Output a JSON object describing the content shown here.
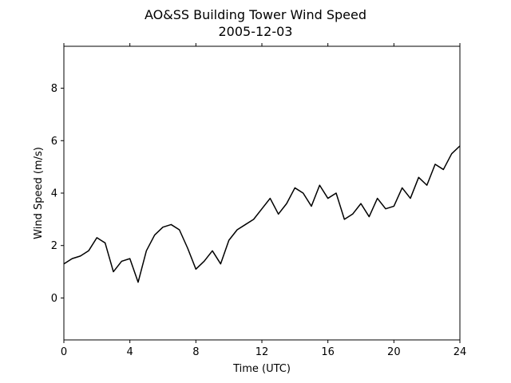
{
  "chart_data": {
    "type": "line",
    "title": "AO&SS Building Tower Wind Speed",
    "subtitle": "2005-12-03",
    "xlabel": "Time (UTC)",
    "ylabel": "Wind Speed (m/s)",
    "xlim": [
      0,
      24
    ],
    "ylim": [
      -1.6,
      9.6
    ],
    "xticks": [
      0,
      4,
      8,
      12,
      16,
      20,
      24
    ],
    "yticks": [
      0,
      2,
      4,
      6,
      8
    ],
    "grid": false,
    "legend": "none",
    "color": "#000000",
    "series": [
      {
        "x": [
          0.0,
          0.5,
          1.0,
          1.5,
          2.0,
          2.5,
          3.0,
          3.5,
          4.0,
          4.5,
          5.0,
          5.5,
          6.0,
          6.5,
          7.0,
          7.5,
          8.0,
          8.5,
          9.0,
          9.5,
          10.0,
          10.5,
          11.0,
          11.5,
          12.0,
          12.5,
          13.0,
          13.5,
          14.0,
          14.5,
          15.0,
          15.5,
          16.0,
          16.5,
          17.0,
          17.5,
          18.0,
          18.5,
          19.0,
          19.5,
          20.0,
          20.5,
          21.0,
          21.5,
          22.0,
          22.5,
          23.0,
          23.5,
          24.0
        ],
        "values": [
          1.3,
          1.5,
          1.6,
          1.8,
          2.3,
          2.1,
          1.0,
          1.4,
          1.5,
          0.6,
          1.8,
          2.4,
          2.7,
          2.8,
          2.6,
          1.9,
          1.1,
          1.4,
          1.8,
          1.3,
          2.2,
          2.6,
          2.8,
          3.0,
          3.4,
          3.8,
          3.2,
          3.6,
          4.2,
          4.0,
          3.5,
          4.3,
          3.8,
          4.0,
          3.0,
          3.2,
          3.6,
          3.1,
          3.8,
          3.4,
          3.5,
          4.2,
          3.8,
          4.6,
          4.3,
          5.1,
          4.9,
          5.5,
          5.8
        ]
      }
    ]
  }
}
